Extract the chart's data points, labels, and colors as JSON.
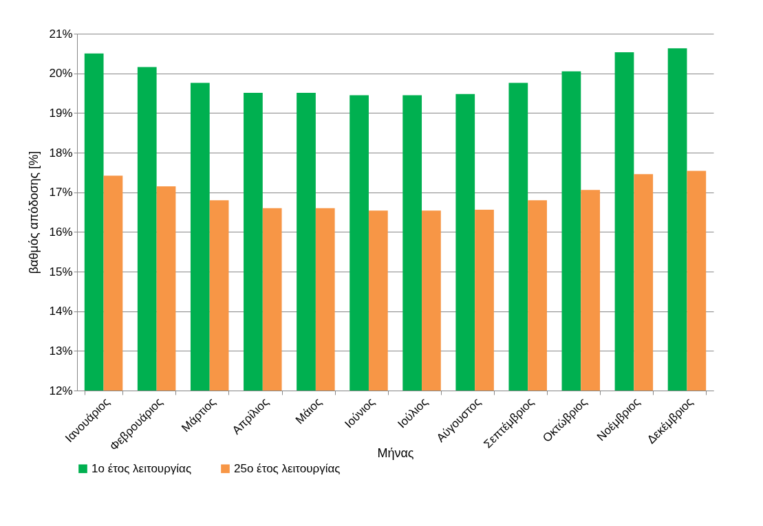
{
  "chart_data": {
    "type": "bar",
    "xlabel": "Μήνας",
    "ylabel": "βαθμός απόδοσης [%]",
    "categories": [
      "Ιανουάριος",
      "Φεβρουάριος",
      "Μάρτιος",
      "Απρίλιος",
      "Μάιος",
      "Ιούνιος",
      "Ιούλιος",
      "Αύγουστος",
      "Σεπτέμβριος",
      "Οκτώβριος",
      "Νοέμβριος",
      "Δεκέμβριος"
    ],
    "series": [
      {
        "name": "1ο έτος λειτουργίας",
        "color": "#00b050",
        "values": [
          20.5,
          20.16,
          19.76,
          19.51,
          19.51,
          19.45,
          19.45,
          19.48,
          19.76,
          20.05,
          20.53,
          20.63
        ]
      },
      {
        "name": "25ο έτος λειτουργίας",
        "color": "#f79646",
        "values": [
          17.42,
          17.15,
          16.8,
          16.6,
          16.6,
          16.54,
          16.54,
          16.56,
          16.8,
          17.06,
          17.46,
          17.54
        ]
      }
    ],
    "ylim": [
      12,
      21
    ],
    "yticks": [
      {
        "value": 12,
        "label": "12%"
      },
      {
        "value": 13,
        "label": "13%"
      },
      {
        "value": 14,
        "label": "14%"
      },
      {
        "value": 15,
        "label": "15%"
      },
      {
        "value": 16,
        "label": "16%"
      },
      {
        "value": 17,
        "label": "17%"
      },
      {
        "value": 18,
        "label": "18%"
      },
      {
        "value": 19,
        "label": "19%"
      },
      {
        "value": 20,
        "label": "20%"
      },
      {
        "value": 21,
        "label": "21%"
      }
    ],
    "grid": "y",
    "legend": "bottom"
  }
}
